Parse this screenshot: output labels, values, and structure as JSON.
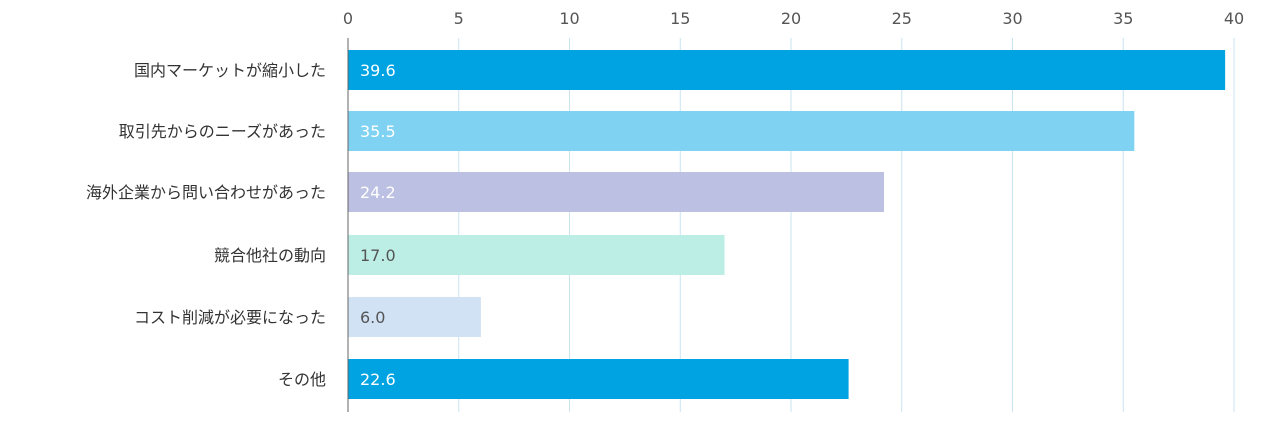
{
  "chart_data": {
    "type": "bar",
    "orientation": "horizontal",
    "title": "",
    "xlabel": "",
    "ylabel": "",
    "xlim": [
      0,
      40
    ],
    "ticks": [
      "0",
      "5",
      "10",
      "15",
      "20",
      "25",
      "30",
      "35",
      "40"
    ],
    "tick_values": [
      0,
      5,
      10,
      15,
      20,
      25,
      30,
      35,
      40
    ],
    "grid": true,
    "axis_position": "top",
    "categories": [
      "国内マーケットが縮小した",
      "取引先からのニーズがあった",
      "海外企業から問い合わせがあった",
      "競合他社の動向",
      "コスト削減が必要になった",
      "その他"
    ],
    "values": [
      39.6,
      35.5,
      24.2,
      17.0,
      6.0,
      22.6
    ],
    "value_labels": [
      "39.6",
      "35.5",
      "24.2",
      "17.0",
      "6.0",
      "22.6"
    ],
    "bar_colors": [
      "#00a3e2",
      "#7fd2f1",
      "#bcc0e2",
      "#bdeee6",
      "#d1e2f5",
      "#00a3e2"
    ],
    "label_colors": [
      "#ffffff",
      "#ffffff",
      "#ffffff",
      "#555555",
      "#555555",
      "#ffffff"
    ],
    "grid_color": "#c9e3ef",
    "axis_color": "#666666"
  }
}
